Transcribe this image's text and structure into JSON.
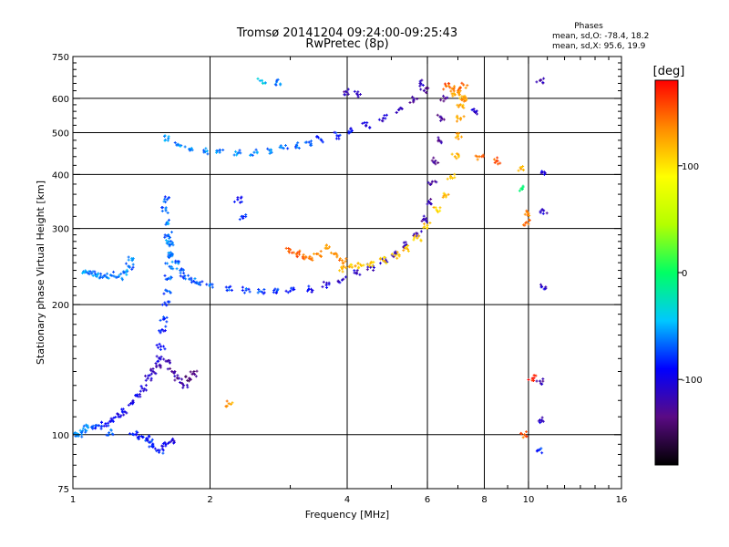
{
  "chart_data": {
    "type": "scatter",
    "title": "Tromsø 20141204 09:24:00-09:25:43",
    "subtitle": "RwPretec (8p)",
    "info": {
      "heading": "Phases",
      "line1": "mean, sd,O: -78.4, 18.2",
      "line2": "mean, sd,X:  95.6, 19.9"
    },
    "xlabel": "Frequency [MHz]",
    "ylabel": "Stationary phase Virtual Height [km]",
    "x_scale": "log",
    "y_scale": "log",
    "xlim": [
      1,
      16
    ],
    "ylim": [
      75,
      750
    ],
    "grid": true,
    "x_gridlines": [
      2,
      4,
      6,
      8,
      10
    ],
    "y_gridlines": [
      100,
      200,
      300,
      400,
      500,
      600
    ],
    "x_ticks": [
      {
        "value": 1,
        "label": "1"
      },
      {
        "value": 2,
        "label": "2"
      },
      {
        "value": 4,
        "label": "4"
      },
      {
        "value": 6,
        "label": "6"
      },
      {
        "value": 8,
        "label": "8"
      },
      {
        "value": 10,
        "label": "10"
      },
      {
        "value": 16,
        "label": "16"
      }
    ],
    "y_ticks": [
      {
        "value": 75,
        "label": "75"
      },
      {
        "value": 100,
        "label": "100"
      },
      {
        "value": 200,
        "label": "200"
      },
      {
        "value": 300,
        "label": "300"
      },
      {
        "value": 400,
        "label": "400"
      },
      {
        "value": 500,
        "label": "500"
      },
      {
        "value": 600,
        "label": "600"
      },
      {
        "value": 750,
        "label": "750"
      }
    ],
    "colorbar": {
      "label": "[deg]",
      "range": [
        -180,
        180
      ],
      "ticks": [
        {
          "value": 100,
          "label": "100"
        },
        {
          "value": 0,
          "label": "0"
        },
        {
          "value": -100,
          "label": "-100"
        }
      ],
      "colors": [
        "#000000",
        "#5a0a84",
        "#0000ff",
        "#00c8ff",
        "#00ff64",
        "#b4ff00",
        "#ffff00",
        "#ff8c00",
        "#ff0000"
      ]
    },
    "series": [
      {
        "points": [
          [
            1.0,
            100,
            -60
          ],
          [
            1.03,
            100,
            -55
          ],
          [
            1.05,
            102,
            -60
          ],
          [
            1.08,
            104,
            -62
          ],
          [
            1.1,
            104,
            -70
          ],
          [
            1.14,
            105,
            -80
          ],
          [
            1.18,
            106,
            -90
          ],
          [
            1.22,
            108,
            -95
          ],
          [
            1.26,
            110,
            -100
          ],
          [
            1.3,
            113,
            -100
          ],
          [
            1.34,
            118,
            -95
          ],
          [
            1.38,
            123,
            -100
          ],
          [
            1.42,
            128,
            -105
          ],
          [
            1.46,
            135,
            -110
          ],
          [
            1.5,
            140,
            -115
          ],
          [
            1.55,
            145,
            -120
          ],
          [
            1.6,
            148,
            -120
          ],
          [
            1.65,
            140,
            -130
          ],
          [
            1.7,
            135,
            -125
          ],
          [
            1.75,
            130,
            -120
          ],
          [
            1.8,
            135,
            -135
          ],
          [
            1.85,
            138,
            -130
          ]
        ]
      },
      {
        "points": [
          [
            1.47,
            96,
            -80
          ],
          [
            1.5,
            94,
            -90
          ],
          [
            1.55,
            92,
            -85
          ],
          [
            1.6,
            95,
            -95
          ],
          [
            1.65,
            97,
            -100
          ],
          [
            1.36,
            100,
            -80
          ],
          [
            1.4,
            99,
            -85
          ],
          [
            1.45,
            98,
            -90
          ],
          [
            1.2,
            101,
            -70
          ]
        ]
      },
      {
        "points": [
          [
            1.55,
            150,
            -100
          ],
          [
            1.56,
            160,
            -95
          ],
          [
            1.57,
            175,
            -90
          ],
          [
            1.58,
            185,
            -85
          ],
          [
            1.6,
            200,
            -80
          ],
          [
            1.61,
            215,
            -75
          ],
          [
            1.62,
            230,
            -70
          ],
          [
            1.63,
            245,
            -70
          ],
          [
            1.64,
            260,
            -65
          ],
          [
            1.63,
            275,
            -65
          ],
          [
            1.62,
            290,
            -60
          ],
          [
            1.61,
            310,
            -60
          ],
          [
            1.6,
            330,
            -65
          ],
          [
            1.61,
            350,
            -70
          ]
        ]
      },
      {
        "points": [
          [
            1.07,
            238,
            -60
          ],
          [
            1.1,
            236,
            -65
          ],
          [
            1.13,
            234,
            -60
          ],
          [
            1.17,
            233,
            -62
          ],
          [
            1.21,
            234,
            -60
          ],
          [
            1.26,
            232,
            -65
          ],
          [
            1.3,
            238,
            -60
          ],
          [
            1.33,
            245,
            -65
          ],
          [
            1.35,
            255,
            -62
          ]
        ]
      },
      {
        "points": [
          [
            1.62,
            280,
            -60
          ],
          [
            1.65,
            262,
            -62
          ],
          [
            1.68,
            250,
            -64
          ],
          [
            1.72,
            240,
            -66
          ],
          [
            1.76,
            233,
            -68
          ],
          [
            1.82,
            228,
            -70
          ],
          [
            1.9,
            225,
            -72
          ],
          [
            2.0,
            222,
            -72
          ],
          [
            2.2,
            219,
            -74
          ],
          [
            2.4,
            216,
            -76
          ],
          [
            2.6,
            214,
            -78
          ],
          [
            2.8,
            214,
            -82
          ],
          [
            3.0,
            215,
            -88
          ],
          [
            3.3,
            217,
            -92
          ],
          [
            3.6,
            222,
            -100
          ],
          [
            3.9,
            228,
            -105
          ],
          [
            4.2,
            236,
            -110
          ],
          [
            4.5,
            244,
            -112
          ],
          [
            4.8,
            253,
            -115
          ],
          [
            5.1,
            262,
            -115
          ],
          [
            5.4,
            275,
            -118
          ],
          [
            5.7,
            292,
            -120
          ],
          [
            5.9,
            315,
            -120
          ],
          [
            6.05,
            345,
            -122
          ],
          [
            6.15,
            385,
            -125
          ],
          [
            6.25,
            430,
            -128
          ],
          [
            6.35,
            480,
            -128
          ],
          [
            6.45,
            540,
            -130
          ],
          [
            6.55,
            600,
            -130
          ]
        ]
      },
      {
        "points": [
          [
            3.9,
            242,
            120
          ],
          [
            4.1,
            244,
            115
          ],
          [
            4.3,
            246,
            110
          ],
          [
            4.5,
            249,
            115
          ],
          [
            4.8,
            253,
            110
          ],
          [
            5.1,
            260,
            112
          ],
          [
            5.4,
            270,
            115
          ],
          [
            5.7,
            285,
            112
          ],
          [
            6.0,
            305,
            110
          ],
          [
            6.3,
            330,
            112
          ],
          [
            6.55,
            360,
            115
          ],
          [
            6.75,
            395,
            118
          ],
          [
            6.9,
            440,
            120
          ],
          [
            7.0,
            490,
            122
          ],
          [
            7.1,
            540,
            125
          ],
          [
            7.2,
            600,
            128
          ]
        ]
      },
      {
        "points": [
          [
            3.0,
            268,
            150
          ],
          [
            3.1,
            262,
            148
          ],
          [
            3.2,
            258,
            145
          ],
          [
            3.3,
            256,
            140
          ],
          [
            3.45,
            262,
            130
          ],
          [
            3.6,
            270,
            132
          ],
          [
            3.75,
            262,
            140
          ],
          [
            3.9,
            253,
            135
          ]
        ]
      },
      {
        "points": [
          [
            1.62,
            485,
            -60
          ],
          [
            1.7,
            470,
            -58
          ],
          [
            1.8,
            458,
            -60
          ],
          [
            1.95,
            452,
            -58
          ],
          [
            2.1,
            450,
            -60
          ],
          [
            2.3,
            448,
            -62
          ],
          [
            2.5,
            450,
            -60
          ],
          [
            2.7,
            455,
            -62
          ],
          [
            2.9,
            460,
            -65
          ],
          [
            3.1,
            467,
            -70
          ],
          [
            3.3,
            475,
            -75
          ],
          [
            3.5,
            482,
            -80
          ],
          [
            3.8,
            492,
            -85
          ],
          [
            4.1,
            505,
            -95
          ],
          [
            4.4,
            520,
            -105
          ],
          [
            4.8,
            540,
            -110
          ],
          [
            5.2,
            565,
            -115
          ],
          [
            5.6,
            595,
            -120
          ],
          [
            5.9,
            625,
            -122
          ]
        ]
      },
      {
        "points": [
          [
            6.6,
            640,
            150
          ],
          [
            6.8,
            632,
            130
          ],
          [
            7.0,
            620,
            140
          ],
          [
            7.2,
            645,
            145
          ],
          [
            7.3,
            600,
            130
          ],
          [
            7.1,
            580,
            120
          ],
          [
            6.9,
            612,
            125
          ]
        ]
      },
      {
        "points": [
          [
            7.6,
            560,
            -110
          ],
          [
            7.8,
            440,
            140
          ],
          [
            8.5,
            430,
            150
          ],
          [
            9.6,
            415,
            120
          ],
          [
            9.9,
            310,
            150
          ],
          [
            10.0,
            325,
            140
          ],
          [
            10.6,
            660,
            -120
          ],
          [
            10.7,
            405,
            -100
          ],
          [
            10.8,
            330,
            -110
          ],
          [
            10.7,
            220,
            -110
          ],
          [
            10.6,
            133,
            -120
          ],
          [
            10.7,
            108,
            -110
          ],
          [
            10.5,
            92,
            -80
          ],
          [
            10.2,
            135,
            170
          ],
          [
            9.8,
            100,
            150
          ],
          [
            9.7,
            370,
            0
          ],
          [
            2.2,
            118,
            130
          ],
          [
            2.6,
            660,
            -40
          ],
          [
            2.8,
            655,
            -60
          ],
          [
            2.3,
            350,
            -90
          ],
          [
            2.35,
            320,
            -80
          ],
          [
            4.0,
            620,
            -120
          ],
          [
            4.2,
            615,
            -115
          ],
          [
            5.8,
            650,
            -110
          ]
        ]
      }
    ]
  }
}
